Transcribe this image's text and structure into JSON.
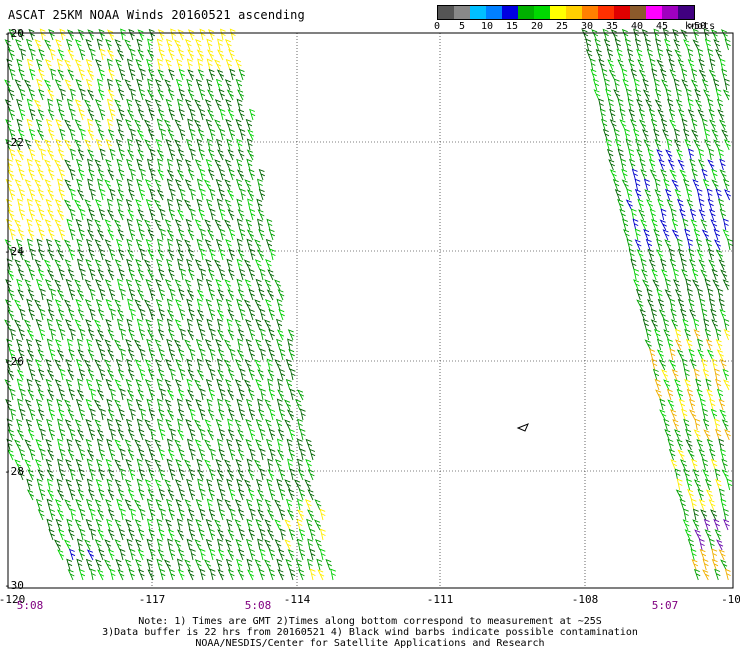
{
  "title": "ASCAT 25KM NOAA Winds 20160521 ascending",
  "legend": {
    "labels": [
      "0",
      "5",
      "10",
      "15",
      "20",
      "25",
      "30",
      "35",
      "40",
      "45",
      ">50"
    ],
    "units": "knots",
    "colors": [
      "#555555",
      "#888888",
      "#00bfff",
      "#0080ff",
      "#0000e0",
      "#00b000",
      "#00d800",
      "#ffff00",
      "#ffd000",
      "#ff8000",
      "#ff3000",
      "#e00000",
      "#8b5a2b",
      "#ff00ff",
      "#a000c0",
      "#400080"
    ]
  },
  "map": {
    "lat_labels": [
      "-20",
      "-22",
      "-24",
      "-26",
      "-28",
      "-30"
    ],
    "lon_labels": [
      "-120",
      "-117",
      "-114",
      "-111",
      "-108",
      "-10"
    ],
    "time_labels": [
      "5:08",
      "5:08",
      "5:07"
    ],
    "barb_colors": {
      "dark_green": "#006400",
      "green": "#00a000",
      "light_green": "#00d000",
      "yellow": "#ffee00",
      "orange": "#f0b000",
      "blue": "#0000cc",
      "purple": "#6a0dad"
    }
  },
  "notes": {
    "line1": "Note: 1) Times are GMT 2)Times along bottom correspond to measurement at ~25S",
    "line2": "3)Data buffer is 22 hrs from 20160521 4) Black wind barbs indicate possible contamination",
    "line3": "NOAA/NESDIS/Center for Satellite Applications and Research"
  }
}
